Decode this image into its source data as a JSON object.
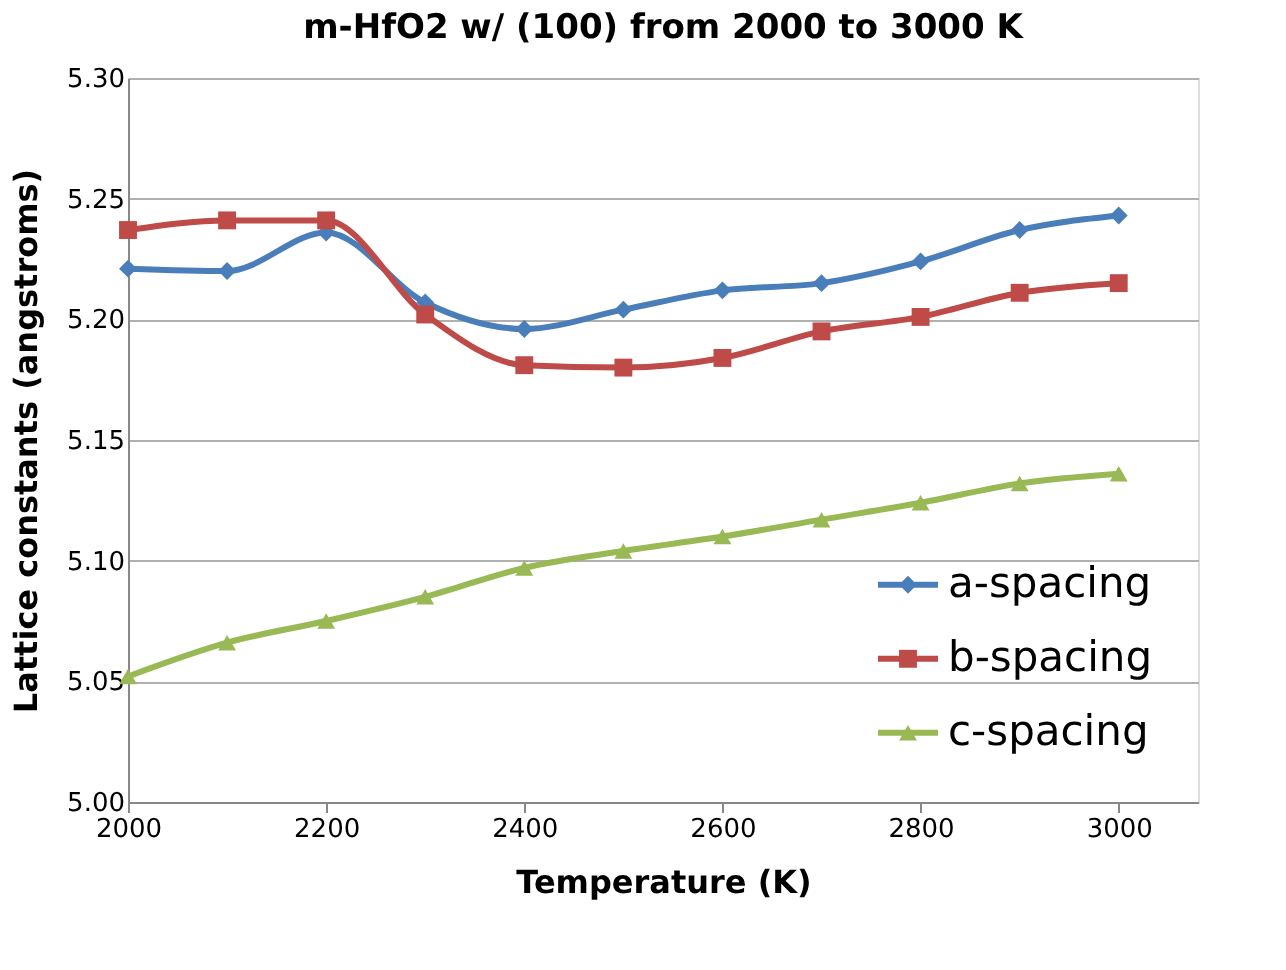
{
  "chart_data": {
    "type": "line",
    "title": "m-HfO2 w/ (100) from 2000 to 3000 K",
    "xlabel": "Temperature (K)",
    "ylabel": "Lattice constants (angstroms)",
    "x": [
      2000,
      2100,
      2200,
      2300,
      2400,
      2500,
      2600,
      2700,
      2800,
      2900,
      3000
    ],
    "series": [
      {
        "name": "a-spacing",
        "color": "#4a7ebb",
        "marker": "diamond",
        "values": [
          5.221,
          5.22,
          5.236,
          5.207,
          5.196,
          5.204,
          5.212,
          5.215,
          5.224,
          5.237,
          5.243
        ]
      },
      {
        "name": "b-spacing",
        "color": "#be4b48",
        "marker": "square",
        "values": [
          5.237,
          5.241,
          5.241,
          5.202,
          5.181,
          5.18,
          5.184,
          5.195,
          5.201,
          5.211,
          5.215
        ]
      },
      {
        "name": "c-spacing",
        "color": "#98b954",
        "marker": "triangle",
        "values": [
          5.052,
          5.066,
          5.075,
          5.085,
          5.097,
          5.104,
          5.11,
          5.117,
          5.124,
          5.132,
          5.136
        ]
      }
    ],
    "xlim": [
      2000,
      3080
    ],
    "xticks": [
      2000,
      2200,
      2400,
      2600,
      2800,
      3000
    ],
    "ylim": [
      5.0,
      5.3
    ],
    "yticks": [
      {
        "value": 5.0,
        "label": "5.00"
      },
      {
        "value": 5.05,
        "label": "5.05"
      },
      {
        "value": 5.1,
        "label": "5.10"
      },
      {
        "value": 5.15,
        "label": "5.15"
      },
      {
        "value": 5.2,
        "label": "5.20"
      },
      {
        "value": 5.25,
        "label": "5.25"
      },
      {
        "value": 5.3,
        "label": "5.30"
      }
    ],
    "grid": "y",
    "legend": "right",
    "line_style": "solid"
  }
}
